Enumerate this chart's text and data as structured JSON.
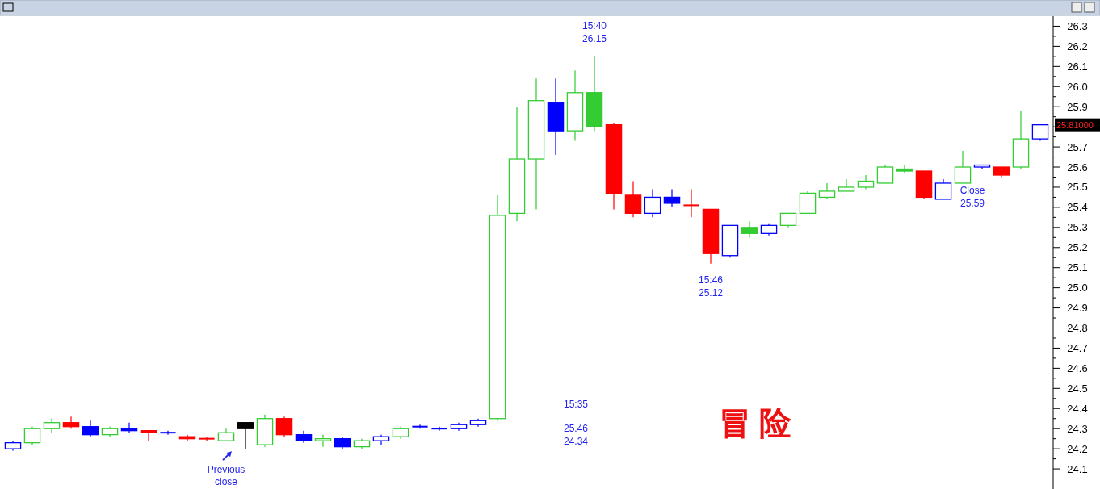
{
  "chart_data": {
    "type": "candlestick",
    "categories": [
      null,
      null,
      null,
      null,
      null,
      null,
      null,
      null,
      null,
      null,
      null,
      null,
      null,
      null,
      null,
      null,
      null,
      null,
      null,
      null,
      null,
      null,
      null,
      null,
      null,
      null,
      null,
      null,
      null,
      null,
      null,
      null,
      null,
      null,
      null,
      null,
      null,
      null,
      null,
      null,
      null,
      null,
      null,
      null,
      null,
      null,
      null,
      null,
      null,
      null,
      null,
      null,
      null,
      null
    ],
    "ohlc": [
      [
        24.2,
        24.24,
        24.19,
        24.23
      ],
      [
        24.23,
        24.31,
        24.22,
        24.3
      ],
      [
        24.3,
        24.35,
        24.28,
        24.33
      ],
      [
        24.33,
        24.36,
        24.3,
        24.31
      ],
      [
        24.31,
        24.34,
        24.26,
        24.27
      ],
      [
        24.27,
        24.31,
        24.26,
        24.3
      ],
      [
        24.3,
        24.33,
        24.28,
        24.29
      ],
      [
        24.29,
        24.29,
        24.24,
        24.28
      ],
      [
        24.28,
        24.29,
        24.27,
        24.28
      ],
      [
        24.26,
        24.27,
        24.24,
        24.25
      ],
      [
        24.25,
        24.26,
        24.24,
        24.25
      ],
      [
        24.24,
        24.3,
        24.24,
        24.28
      ],
      [
        24.33,
        24.33,
        24.2,
        24.3
      ],
      [
        24.22,
        24.37,
        24.21,
        24.35
      ],
      [
        24.35,
        24.36,
        24.26,
        24.27
      ],
      [
        24.27,
        24.29,
        24.23,
        24.24
      ],
      [
        24.24,
        24.27,
        24.21,
        24.25
      ],
      [
        24.25,
        24.26,
        24.2,
        24.21
      ],
      [
        24.21,
        24.25,
        24.2,
        24.24
      ],
      [
        24.24,
        24.27,
        24.22,
        24.26
      ],
      [
        24.26,
        24.31,
        24.25,
        24.3
      ],
      [
        24.31,
        24.32,
        24.3,
        24.31
      ],
      [
        24.3,
        24.31,
        24.29,
        24.3
      ],
      [
        24.3,
        24.33,
        24.29,
        24.32
      ],
      [
        24.32,
        24.35,
        24.31,
        24.34
      ],
      [
        24.35,
        25.46,
        24.34,
        25.36
      ],
      [
        25.37,
        25.9,
        25.33,
        25.64
      ],
      [
        25.64,
        26.04,
        25.39,
        25.93
      ],
      [
        25.92,
        26.04,
        25.66,
        25.78
      ],
      [
        25.78,
        26.08,
        25.73,
        25.97
      ],
      [
        25.97,
        26.15,
        25.78,
        25.8
      ],
      [
        25.81,
        25.82,
        25.39,
        25.47
      ],
      [
        25.46,
        25.53,
        25.35,
        25.37
      ],
      [
        25.37,
        25.49,
        25.35,
        25.45
      ],
      [
        25.45,
        25.49,
        25.4,
        25.42
      ],
      [
        25.41,
        25.49,
        25.35,
        25.41
      ],
      [
        25.39,
        25.39,
        25.12,
        25.17
      ],
      [
        25.16,
        25.31,
        25.15,
        25.31
      ],
      [
        25.3,
        25.33,
        25.25,
        25.27
      ],
      [
        25.27,
        25.32,
        25.26,
        25.31
      ],
      [
        25.31,
        25.37,
        25.3,
        25.37
      ],
      [
        25.37,
        25.48,
        25.37,
        25.47
      ],
      [
        25.45,
        25.52,
        25.44,
        25.48
      ],
      [
        25.48,
        25.54,
        25.48,
        25.5
      ],
      [
        25.5,
        25.56,
        25.49,
        25.53
      ],
      [
        25.52,
        25.61,
        25.52,
        25.6
      ],
      [
        25.59,
        25.61,
        25.57,
        25.58
      ],
      [
        25.58,
        25.58,
        25.44,
        25.45
      ],
      [
        25.44,
        25.54,
        25.44,
        25.52
      ],
      [
        25.52,
        25.68,
        25.52,
        25.6
      ],
      [
        25.6,
        25.61,
        25.59,
        25.61
      ],
      [
        25.6,
        25.6,
        25.55,
        25.56
      ],
      [
        25.6,
        25.88,
        25.59,
        25.74
      ],
      [
        25.74,
        25.81,
        25.73,
        25.81
      ]
    ],
    "colors": [
      "#0000ff",
      "#33cc33",
      "#33cc33",
      "#ff0000",
      "#0000ff",
      "#33cc33",
      "#0000ff",
      "#ff0000",
      "#0000ff",
      "#ff0000",
      "#ff0000",
      "#33cc33",
      "#000000",
      "#33cc33",
      "#ff0000",
      "#0000ff",
      "#33cc33",
      "#0000ff",
      "#33cc33",
      "#0000ff",
      "#33cc33",
      "#0000ff",
      "#0000ff",
      "#0000ff",
      "#0000ff",
      "#33cc33",
      "#33cc33",
      "#33cc33",
      "#0000ff",
      "#33cc33",
      "#33cc33",
      "#ff0000",
      "#ff0000",
      "#0000ff",
      "#0000ff",
      "#ff0000",
      "#ff0000",
      "#0000ff",
      "#33cc33",
      "#0000ff",
      "#33cc33",
      "#33cc33",
      "#33cc33",
      "#33cc33",
      "#33cc33",
      "#33cc33",
      "#33cc33",
      "#ff0000",
      "#0000ff",
      "#33cc33",
      "#0000ff",
      "#ff0000",
      "#33cc33",
      "#0000ff"
    ],
    "ylim": [
      24.0,
      26.35
    ],
    "yticks": [
      24.1,
      {
        "value": 24.15,
        "label": null
      },
      24.2,
      {
        "value": 24.25,
        "label": null
      },
      24.3,
      {
        "value": 24.35,
        "label": null
      },
      24.4,
      {
        "value": 24.45,
        "label": null
      },
      24.5,
      {
        "value": 24.55,
        "label": null
      },
      24.6,
      {
        "value": 24.65,
        "label": null
      },
      24.7,
      {
        "value": 24.75,
        "label": null
      },
      24.8,
      {
        "value": 24.85,
        "label": null
      },
      24.9,
      {
        "value": 24.95,
        "label": null
      },
      {
        "value": 25.0,
        "label": "25.0"
      },
      {
        "value": 25.05,
        "label": null
      },
      25.1,
      {
        "value": 25.15,
        "label": null
      },
      25.2,
      {
        "value": 25.25,
        "label": null
      },
      25.3,
      {
        "value": 25.35,
        "label": null
      },
      25.4,
      {
        "value": 25.45,
        "label": null
      },
      25.5,
      {
        "value": 25.55,
        "label": null
      },
      25.6,
      {
        "value": 25.65,
        "label": null
      },
      25.7,
      {
        "value": 25.75,
        "label": null
      },
      {
        "value": 25.8,
        "label": null
      },
      {
        "value": 25.85,
        "label": null
      },
      25.9,
      {
        "value": 25.95,
        "label": null
      },
      {
        "value": 26.0,
        "label": "26.0"
      },
      {
        "value": 26.05,
        "label": null
      },
      26.1,
      {
        "value": 26.15,
        "label": null
      },
      26.2,
      {
        "value": 26.25,
        "label": null
      },
      26.3
    ],
    "tick_labels": "y",
    "annotations": [
      "15:35",
      "25.46",
      "24.34",
      "15:40",
      "26.15",
      "15:46",
      "25.12",
      "Close",
      "25.59",
      "Previous",
      "close",
      "冒险",
      "25.81000"
    ]
  }
}
